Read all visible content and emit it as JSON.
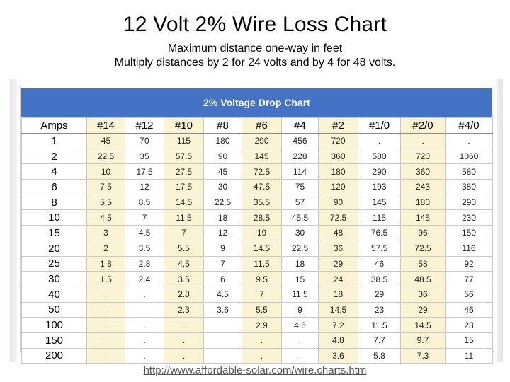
{
  "page": {
    "title": "12 Volt 2% Wire Loss Chart",
    "subtitle1": "Maximum distance one-way in feet",
    "subtitle2": "Multiply distances by 2 for 24 volts and by 4 for 48 volts.",
    "banner": "2% Voltage Drop Chart",
    "footer_url": "http://www.affordable-solar.com/wire.charts.htm"
  },
  "colors": {
    "banner": "#4472c4",
    "alt_column": "#fbf4d4"
  },
  "table": {
    "headers": [
      "Amps",
      "#14",
      "#12",
      "#10",
      "#8",
      "#6",
      "#4",
      "#2",
      "#1/0",
      "#2/0",
      "#4/0"
    ],
    "rows": [
      [
        "1",
        "45",
        "70",
        "115",
        "180",
        "290",
        "456",
        "720",
        ".",
        ".",
        "."
      ],
      [
        "2",
        "22.5",
        "35",
        "57.5",
        "90",
        "145",
        "228",
        "360",
        "580",
        "720",
        "1060"
      ],
      [
        "4",
        "10",
        "17.5",
        "27.5",
        "45",
        "72.5",
        "114",
        "180",
        "290",
        "360",
        "580"
      ],
      [
        "6",
        "7.5",
        "12",
        "17.5",
        "30",
        "47.5",
        "75",
        "120",
        "193",
        "243",
        "380"
      ],
      [
        "8",
        "5.5",
        "8.5",
        "14.5",
        "22.5",
        "35.5",
        "57",
        "90",
        "145",
        "180",
        "290"
      ],
      [
        "10",
        "4.5",
        "7",
        "11.5",
        "18",
        "28.5",
        "45.5",
        "72.5",
        "115",
        "145",
        "230"
      ],
      [
        "15",
        "3",
        "4.5",
        "7",
        "12",
        "19",
        "30",
        "48",
        "76.5",
        "96",
        "150"
      ],
      [
        "20",
        "2",
        "3.5",
        "5.5",
        "9",
        "14.5",
        "22.5",
        "36",
        "57.5",
        "72.5",
        "116"
      ],
      [
        "25",
        "1.8",
        "2.8",
        "4.5",
        "7",
        "11.5",
        "18",
        "29",
        "46",
        "58",
        "92"
      ],
      [
        "30",
        "1.5",
        "2.4",
        "3.5",
        "6",
        "9.5",
        "15",
        "24",
        "38.5",
        "48.5",
        "77"
      ],
      [
        "40",
        ".",
        ".",
        "2.8",
        "4.5",
        "7",
        "11.5",
        "18",
        "29",
        "36",
        "56"
      ],
      [
        "50",
        ".",
        "",
        "2.3",
        "3.6",
        "5.5",
        "9",
        "14.5",
        "23",
        "29",
        "46"
      ],
      [
        "100",
        ".",
        ".",
        ".",
        "",
        "2.9",
        "4.6",
        "7.2",
        "11.5",
        "14.5",
        "23"
      ],
      [
        "150",
        ".",
        ".",
        ".",
        "",
        ".",
        ".",
        "4.8",
        "7.7",
        "9.7",
        "15"
      ],
      [
        "200",
        ".",
        ".",
        ".",
        "",
        ".",
        ".",
        "3.6",
        "5.8",
        "7.3",
        "11"
      ]
    ]
  }
}
